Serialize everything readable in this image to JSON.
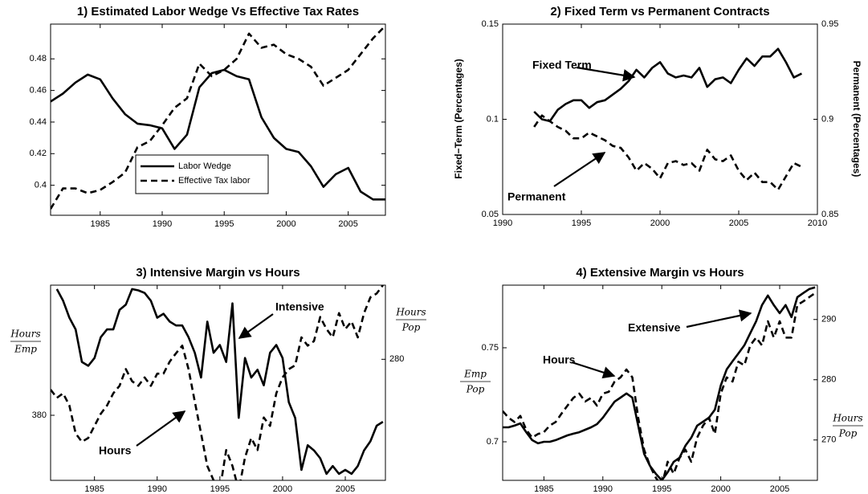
{
  "chart_data": [
    {
      "type": "line",
      "title": "1) Estimated Labor Wedge Vs Effective Tax Rates",
      "xlim": [
        1981,
        2008
      ],
      "xticks": [
        1985,
        1990,
        1995,
        2000,
        2005
      ],
      "ylim": [
        0.381,
        0.502
      ],
      "yticks": [
        0.4,
        0.42,
        0.44,
        0.46,
        0.48
      ],
      "legend": "lower center",
      "series": [
        {
          "name": "Labor Wedge",
          "color": "#000000",
          "style": "solid",
          "x": [
            1981,
            1982,
            1983,
            1984,
            1985,
            1986,
            1987,
            1988,
            1989,
            1990,
            1991,
            1992,
            1993,
            1994,
            1995,
            1996,
            1997,
            1998,
            1999,
            2000,
            2001,
            2002,
            2003,
            2004,
            2005,
            2006,
            2007,
            2008
          ],
          "values": [
            0.453,
            0.458,
            0.465,
            0.47,
            0.467,
            0.455,
            0.445,
            0.439,
            0.438,
            0.436,
            0.423,
            0.432,
            0.462,
            0.471,
            0.473,
            0.469,
            0.467,
            0.443,
            0.43,
            0.423,
            0.421,
            0.412,
            0.399,
            0.407,
            0.411,
            0.396,
            0.391,
            0.391
          ]
        },
        {
          "name": "Effective Tax labor",
          "color": "#000000",
          "style": "dashed",
          "x": [
            1981,
            1982,
            1983,
            1984,
            1985,
            1986,
            1987,
            1988,
            1989,
            1990,
            1991,
            1992,
            1993,
            1994,
            1995,
            1996,
            1997,
            1998,
            1999,
            2000,
            2001,
            2002,
            2003,
            2004,
            2005,
            2006,
            2007,
            2008
          ],
          "values": [
            0.385,
            0.398,
            0.398,
            0.395,
            0.397,
            0.402,
            0.408,
            0.424,
            0.428,
            0.438,
            0.449,
            0.455,
            0.477,
            0.469,
            0.473,
            0.48,
            0.496,
            0.487,
            0.489,
            0.483,
            0.48,
            0.475,
            0.463,
            0.468,
            0.473,
            0.483,
            0.493,
            0.501
          ]
        }
      ]
    },
    {
      "type": "line",
      "title": "2) Fixed Term vs Permanent Contracts",
      "xlim": [
        1990,
        2010
      ],
      "xticks": [
        1990,
        1995,
        2000,
        2005,
        2010
      ],
      "ylim": [
        0.05,
        0.15
      ],
      "yticks": [
        0.05,
        0.1,
        0.15
      ],
      "y2lim": [
        0.85,
        0.95
      ],
      "y2ticks": [
        0.85,
        0.9,
        0.95
      ],
      "ylabel": "Fixed−Term (Percentages)",
      "y2label": "Permanent (Percentages)",
      "annotations": [
        "Fixed Term",
        "Permanent"
      ],
      "series": [
        {
          "color": "#000000",
          "style": "solid",
          "x": [
            1992,
            1992.5,
            1993,
            1993.5,
            1994,
            1994.5,
            1995,
            1995.5,
            1996,
            1996.5,
            1997,
            1997.5,
            1998,
            1998.5,
            1999,
            1999.5,
            2000,
            2000.5,
            2001,
            2001.5,
            2002,
            2002.5,
            2003,
            2003.5,
            2004,
            2004.5,
            2005,
            2005.5,
            2006,
            2006.5,
            2007,
            2007.5,
            2008,
            2008.5,
            2009
          ],
          "values": [
            0.104,
            0.1,
            0.099,
            0.105,
            0.108,
            0.11,
            0.11,
            0.106,
            0.109,
            0.11,
            0.113,
            0.116,
            0.12,
            0.126,
            0.122,
            0.127,
            0.13,
            0.124,
            0.122,
            0.123,
            0.122,
            0.127,
            0.117,
            0.121,
            0.122,
            0.119,
            0.126,
            0.132,
            0.128,
            0.133,
            0.133,
            0.137,
            0.13,
            0.122,
            0.124
          ]
        },
        {
          "color": "#000000",
          "style": "dashed",
          "axis": "y2",
          "x": [
            1992,
            1992.5,
            1993,
            1993.5,
            1994,
            1994.5,
            1995,
            1995.5,
            1996,
            1996.5,
            1997,
            1997.5,
            1998,
            1998.5,
            1999,
            1999.5,
            2000,
            2000.5,
            2001,
            2001.5,
            2002,
            2002.5,
            2003,
            2003.5,
            2004,
            2004.5,
            2005,
            2005.5,
            2006,
            2006.5,
            2007,
            2007.5,
            2008,
            2008.5,
            2009
          ],
          "values": [
            0.896,
            0.902,
            0.899,
            0.896,
            0.894,
            0.89,
            0.89,
            0.893,
            0.891,
            0.889,
            0.886,
            0.885,
            0.88,
            0.873,
            0.877,
            0.874,
            0.869,
            0.877,
            0.878,
            0.876,
            0.877,
            0.873,
            0.884,
            0.879,
            0.878,
            0.881,
            0.873,
            0.868,
            0.872,
            0.867,
            0.867,
            0.863,
            0.87,
            0.877,
            0.875
          ]
        }
      ]
    },
    {
      "type": "line",
      "title": "3) Intensive Margin vs Hours",
      "xlim": [
        1981.5,
        2008.2
      ],
      "xticks": [
        1985,
        1990,
        1995,
        2000,
        2005
      ],
      "ylim": [
        375,
        390
      ],
      "yticks": [
        380
      ],
      "y2lim": [
        264,
        289.8
      ],
      "y2ticks": [
        280
      ],
      "ylabel": {
        "numerator": "Hours",
        "denominator": "Emp"
      },
      "y2label": {
        "numerator": "Hours",
        "denominator": "Pop"
      },
      "annotations": [
        "Intensive",
        "Hours"
      ],
      "series": [
        {
          "color": "#000000",
          "style": "solid",
          "x": [
            1982,
            1982.5,
            1983,
            1983.5,
            1984,
            1984.5,
            1985,
            1985.5,
            1986,
            1986.5,
            1987,
            1987.5,
            1988,
            1988.5,
            1989,
            1989.5,
            1990,
            1990.5,
            1991,
            1991.5,
            1992,
            1992.5,
            1993,
            1993.5,
            1994,
            1994.5,
            1995,
            1995.5,
            1996,
            1996.5,
            1997,
            1997.5,
            1998,
            1998.5,
            1999,
            1999.5,
            2000,
            2000.5,
            2001,
            2001.5,
            2002,
            2002.5,
            2003,
            2003.5,
            2004,
            2004.5,
            2005,
            2005.5,
            2006,
            2006.5,
            2007,
            2007.5,
            2008
          ],
          "values": [
            389.7,
            388.8,
            387.5,
            386.6,
            384.1,
            383.8,
            384.4,
            386.0,
            386.6,
            386.6,
            388.1,
            388.5,
            389.7,
            389.6,
            389.4,
            388.8,
            387.5,
            387.8,
            387.2,
            386.9,
            386.9,
            386.0,
            384.8,
            382.9,
            387.2,
            384.8,
            385.4,
            384.1,
            388.6,
            379.8,
            384.4,
            382.9,
            383.5,
            382.3,
            384.8,
            385.4,
            384.4,
            381.0,
            379.8,
            375.8,
            377.7,
            377.3,
            376.7,
            375.5,
            376.1,
            375.5,
            375.8,
            375.5,
            376.1,
            377.3,
            378.0,
            379.2,
            379.5
          ]
        },
        {
          "color": "#000000",
          "style": "dashed",
          "axis": "y2",
          "x": [
            1981.5,
            1982,
            1982.5,
            1983,
            1983.5,
            1984,
            1984.5,
            1985,
            1985.5,
            1986,
            1986.5,
            1987,
            1987.5,
            1988,
            1988.5,
            1989,
            1989.5,
            1990,
            1990.5,
            1991,
            1991.5,
            1992,
            1992.5,
            1993,
            1993.5,
            1994,
            1994.5,
            1995,
            1995.5,
            1996,
            1996.5,
            1997,
            1997.5,
            1998,
            1998.5,
            1999,
            1999.5,
            2000,
            2000.5,
            2001,
            2001.5,
            2002,
            2002.5,
            2003,
            2003.5,
            2004,
            2004.5,
            2005,
            2005.5,
            2006,
            2006.5,
            2007,
            2007.5,
            2008
          ],
          "values": [
            276.0,
            274.9,
            275.5,
            273.9,
            270.2,
            269.1,
            269.6,
            271.2,
            272.8,
            273.9,
            275.5,
            276.5,
            278.7,
            277.1,
            276.5,
            277.6,
            276.5,
            278.1,
            278.1,
            279.7,
            280.8,
            281.8,
            278.7,
            274.4,
            270.2,
            265.9,
            264.0,
            262.7,
            268.0,
            265.9,
            262.7,
            267.0,
            269.6,
            268.0,
            272.3,
            271.2,
            275.5,
            277.6,
            278.7,
            279.2,
            282.9,
            281.8,
            282.4,
            285.6,
            284.0,
            282.9,
            286.1,
            284.0,
            285.0,
            282.9,
            286.1,
            288.2,
            288.7,
            289.8
          ]
        }
      ]
    },
    {
      "type": "line",
      "title": "4) Extensive Margin vs Hours",
      "xlim": [
        1981.5,
        2008.2
      ],
      "xticks": [
        1985,
        1990,
        1995,
        2000,
        2005
      ],
      "ylim": [
        0.6795,
        0.7833
      ],
      "yticks": [
        0.7,
        0.75
      ],
      "y2lim": [
        263.3,
        295.7
      ],
      "y2ticks": [
        270,
        280,
        290
      ],
      "ylabel": {
        "numerator": "Emp",
        "denominator": "Pop"
      },
      "y2label": {
        "numerator": "Hours",
        "denominator": "Pop"
      },
      "annotations": [
        "Extensive",
        "Hours"
      ],
      "series": [
        {
          "color": "#000000",
          "style": "solid",
          "x": [
            1981.5,
            1982,
            1982.5,
            1983,
            1983.5,
            1984,
            1984.5,
            1985,
            1985.5,
            1986,
            1986.5,
            1987,
            1987.5,
            1988,
            1988.5,
            1989,
            1989.5,
            1990,
            1990.5,
            1991,
            1991.5,
            1992,
            1992.5,
            1993,
            1993.5,
            1994,
            1994.5,
            1995,
            1995.5,
            1996,
            1996.5,
            1997,
            1997.5,
            1998,
            1998.5,
            1999,
            1999.5,
            2000,
            2000.5,
            2001,
            2001.5,
            2002,
            2002.5,
            2003,
            2003.5,
            2004,
            2004.5,
            2005,
            2005.5,
            2006,
            2006.5,
            2007,
            2007.5,
            2008
          ],
          "values": [
            0.7077,
            0.7077,
            0.7086,
            0.7098,
            0.7051,
            0.7009,
            0.6992,
            0.7,
            0.7,
            0.7009,
            0.7022,
            0.7034,
            0.7043,
            0.7051,
            0.7064,
            0.7077,
            0.7094,
            0.7128,
            0.7171,
            0.7214,
            0.7235,
            0.7257,
            0.7235,
            0.7086,
            0.6936,
            0.6872,
            0.6829,
            0.6795,
            0.6838,
            0.6893,
            0.6915,
            0.6979,
            0.7022,
            0.7086,
            0.7107,
            0.7128,
            0.7171,
            0.7299,
            0.7385,
            0.7428,
            0.747,
            0.7513,
            0.7577,
            0.7641,
            0.7727,
            0.7778,
            0.7727,
            0.7684,
            0.7727,
            0.7663,
            0.7769,
            0.7791,
            0.7812,
            0.7821
          ]
        },
        {
          "color": "#000000",
          "style": "dashed",
          "axis": "y2",
          "x": [
            1981.5,
            1982,
            1982.5,
            1983,
            1983.5,
            1984,
            1984.5,
            1985,
            1985.5,
            1986,
            1986.5,
            1987,
            1987.5,
            1988,
            1988.5,
            1989,
            1989.5,
            1990,
            1990.5,
            1991,
            1991.5,
            1992,
            1992.5,
            1993,
            1993.5,
            1994,
            1994.5,
            1995,
            1995.5,
            1996,
            1996.5,
            1997,
            1997.5,
            1998,
            1998.5,
            1999,
            1999.5,
            2000,
            2000.5,
            2001,
            2001.5,
            2002,
            2002.5,
            2003,
            2003.5,
            2004,
            2004.5,
            2005,
            2005.5,
            2006,
            2006.5,
            2007,
            2007.5,
            2008
          ],
          "values": [
            274.8,
            273.7,
            273.0,
            274.0,
            271.7,
            270.4,
            271.0,
            271.3,
            272.4,
            273.0,
            274.4,
            275.7,
            277.0,
            277.7,
            276.4,
            277.0,
            275.7,
            277.7,
            278.0,
            279.7,
            280.4,
            281.7,
            280.4,
            273.7,
            268.4,
            265.7,
            263.7,
            262.4,
            266.4,
            264.4,
            267.0,
            268.4,
            266.4,
            270.4,
            272.4,
            273.7,
            271.0,
            277.7,
            280.4,
            279.7,
            283.0,
            282.4,
            285.7,
            287.0,
            285.7,
            289.7,
            287.0,
            289.7,
            287.0,
            287.0,
            292.4,
            293.0,
            293.7,
            294.4
          ]
        }
      ]
    }
  ]
}
